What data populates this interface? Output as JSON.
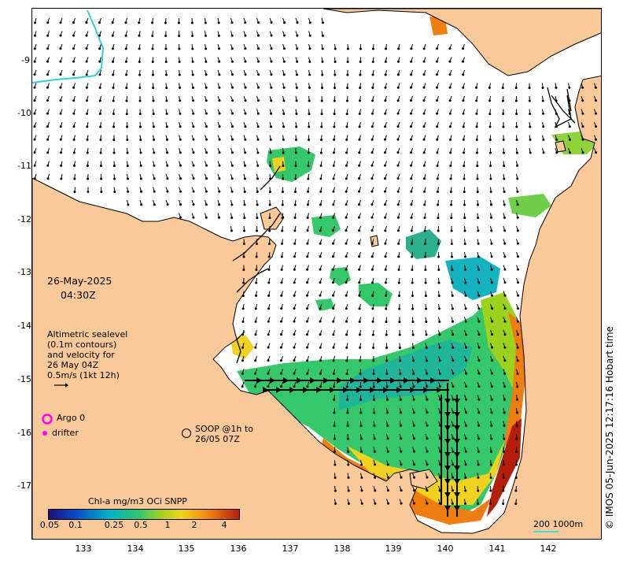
{
  "header": {
    "date": "26-May-2025",
    "time": "04:30Z"
  },
  "legend": {
    "altimetry_lines": [
      "Altimetric sealevel",
      "(0.1m contours)",
      "and velocity for",
      "26 May 04Z",
      "0.5m/s (1kt 12h)"
    ],
    "argo_label": "Argo 0",
    "drifter_label": "drifter",
    "soop_line1": "SOOP @1h to",
    "soop_line2": "26/05 07Z",
    "scale_label": "200  1000m",
    "argo_color": "#ff00ff",
    "drifter_color": "#ff00ff",
    "scale_color": "#40e0d0"
  },
  "colorbar": {
    "title": "Chl-a mg/m3 OCi SNPP",
    "ticks": [
      "0.05",
      "0.1",
      "0.25",
      "0.5",
      "1",
      "2",
      "4"
    ],
    "colors": [
      "#1c0f7a",
      "#0a4fc8",
      "#00b4c8",
      "#34c86a",
      "#9ad21e",
      "#f0d21e",
      "#f07d0f",
      "#b41e0a"
    ]
  },
  "axes": {
    "lat_labels": [
      "-9",
      "-10",
      "-11",
      "-12",
      "-13",
      "-14",
      "-15",
      "-16",
      "-17"
    ],
    "lon_labels": [
      "133",
      "134",
      "135",
      "136",
      "137",
      "138",
      "139",
      "140",
      "141",
      "142"
    ]
  },
  "credit": "© IMOS 05-Jun-2025 12:17:16 Hobart time",
  "colors": {
    "land": "#f9c99a",
    "coast": "#000000",
    "eez_line": "#2ed3d3"
  }
}
